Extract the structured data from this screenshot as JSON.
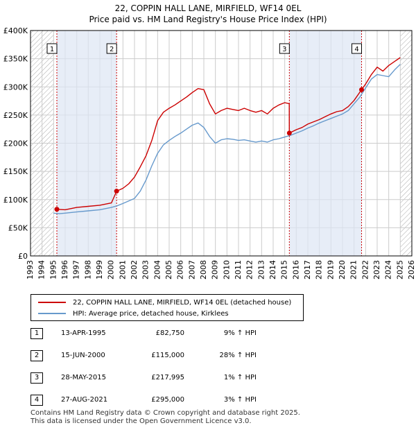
{
  "header": {
    "title": "22, COPPIN HALL LANE, MIRFIELD, WF14 0EL",
    "subtitle": "Price paid vs. HM Land Registry's House Price Index (HPI)"
  },
  "colors": {
    "price_line": "#cc0000",
    "hpi_line": "#6699cc",
    "shade": "#dde6f3",
    "hatch": "#aaaaaa",
    "grid": "#cccccc",
    "marker_line": "#cc0000"
  },
  "legend": {
    "price_label": "22, COPPIN HALL LANE, MIRFIELD, WF14 0EL (detached house)",
    "hpi_label": "HPI: Average price, detached house, Kirklees"
  },
  "sales": [
    {
      "num": "1",
      "date": "13-APR-1995",
      "price": "£82,750",
      "hpi": "9% ↑ HPI"
    },
    {
      "num": "2",
      "date": "15-JUN-2000",
      "price": "£115,000",
      "hpi": "28% ↑ HPI"
    },
    {
      "num": "3",
      "date": "28-MAY-2015",
      "price": "£217,995",
      "hpi": "1% ↑ HPI"
    },
    {
      "num": "4",
      "date": "27-AUG-2021",
      "price": "£295,000",
      "hpi": "3% ↑ HPI"
    }
  ],
  "footer": {
    "line1": "Contains HM Land Registry data © Crown copyright and database right 2025.",
    "line2": "This data is licensed under the Open Government Licence v3.0."
  },
  "chart_data": {
    "type": "line",
    "title": "22, COPPIN HALL LANE, MIRFIELD, WF14 0EL",
    "subtitle": "Price paid vs. HM Land Registry's House Price Index (HPI)",
    "xlabel": "",
    "ylabel": "",
    "xlim": [
      1993,
      2026
    ],
    "ylim": [
      0,
      400000
    ],
    "x_ticks": [
      1993,
      1994,
      1995,
      1996,
      1997,
      1998,
      1999,
      2000,
      2001,
      2002,
      2003,
      2004,
      2005,
      2006,
      2007,
      2008,
      2009,
      2010,
      2011,
      2012,
      2013,
      2014,
      2015,
      2016,
      2017,
      2018,
      2019,
      2020,
      2021,
      2022,
      2023,
      2024,
      2025,
      2026
    ],
    "y_ticks": [
      {
        "value": 0,
        "label": "£0"
      },
      {
        "value": 50000,
        "label": "£50K"
      },
      {
        "value": 100000,
        "label": "£100K"
      },
      {
        "value": 150000,
        "label": "£150K"
      },
      {
        "value": 200000,
        "label": "£200K"
      },
      {
        "value": 250000,
        "label": "£250K"
      },
      {
        "value": 300000,
        "label": "£300K"
      },
      {
        "value": 350000,
        "label": "£350K"
      },
      {
        "value": 400000,
        "label": "£400K"
      }
    ],
    "grid": true,
    "hatched_ranges": [
      [
        1993,
        1995.0
      ],
      [
        2025.0,
        2026
      ]
    ],
    "shaded_ranges": [
      [
        1995.28,
        2000.45
      ],
      [
        2015.4,
        2021.65
      ]
    ],
    "sales": [
      {
        "label": "1",
        "x": 1995.28,
        "y": 82750
      },
      {
        "label": "2",
        "x": 2000.45,
        "y": 115000
      },
      {
        "label": "3",
        "x": 2015.4,
        "y": 217995
      },
      {
        "label": "4",
        "x": 2021.65,
        "y": 295000
      }
    ],
    "series": [
      {
        "name": "22, COPPIN HALL LANE, MIRFIELD, WF14 0EL (detached house)",
        "color": "#cc0000",
        "x": [
          1995.28,
          1996,
          1997,
          1998,
          1999,
          2000,
          2000.45,
          2001,
          2001.5,
          2002,
          2002.5,
          2003,
          2003.5,
          2004,
          2004.5,
          2005,
          2005.5,
          2006,
          2006.5,
          2007,
          2007.5,
          2008,
          2008.5,
          2009,
          2009.5,
          2010,
          2010.5,
          2011,
          2011.5,
          2012,
          2012.5,
          2013,
          2013.5,
          2014,
          2014.5,
          2015,
          2015.39,
          2015.4,
          2016,
          2016.5,
          2017,
          2017.5,
          2018,
          2018.5,
          2019,
          2019.5,
          2020,
          2020.5,
          2021,
          2021.65,
          2022,
          2022.5,
          2023,
          2023.5,
          2024,
          2024.5,
          2025
        ],
        "values": [
          82750,
          82000,
          86000,
          88000,
          90000,
          94000,
          115000,
          120000,
          128000,
          140000,
          158000,
          178000,
          205000,
          240000,
          255000,
          262000,
          268000,
          275000,
          282000,
          290000,
          297000,
          295000,
          270000,
          252000,
          258000,
          262000,
          260000,
          258000,
          262000,
          258000,
          255000,
          258000,
          252000,
          262000,
          268000,
          272000,
          270000,
          217995,
          224000,
          228000,
          234000,
          238000,
          242000,
          247000,
          252000,
          256000,
          258000,
          265000,
          276000,
          295000,
          305000,
          322000,
          335000,
          328000,
          338000,
          345000,
          352000
        ]
      },
      {
        "name": "HPI: Average price, detached house, Kirklees",
        "color": "#6699cc",
        "x": [
          1995,
          1995.5,
          1996,
          1997,
          1998,
          1999,
          2000,
          2000.5,
          2001,
          2002,
          2002.5,
          2003,
          2003.5,
          2004,
          2004.5,
          2005,
          2005.5,
          2006,
          2006.5,
          2007,
          2007.5,
          2008,
          2008.5,
          2009,
          2009.5,
          2010,
          2010.5,
          2011,
          2011.5,
          2012,
          2012.5,
          2013,
          2013.5,
          2014,
          2014.5,
          2015,
          2015.5,
          2016,
          2016.5,
          2017,
          2017.5,
          2018,
          2018.5,
          2019,
          2019.5,
          2020,
          2020.5,
          2021,
          2021.5,
          2022,
          2022.5,
          2023,
          2023.5,
          2024,
          2024.5,
          2025
        ],
        "values": [
          76000,
          75000,
          76000,
          78000,
          80000,
          82000,
          86000,
          89000,
          93000,
          102000,
          115000,
          135000,
          160000,
          182000,
          197000,
          205000,
          212000,
          218000,
          225000,
          232000,
          236000,
          228000,
          212000,
          200000,
          206000,
          208000,
          207000,
          205000,
          206000,
          204000,
          202000,
          204000,
          202000,
          206000,
          208000,
          211000,
          214000,
          218000,
          222000,
          227000,
          231000,
          236000,
          240000,
          244000,
          248000,
          252000,
          258000,
          270000,
          282000,
          298000,
          314000,
          322000,
          320000,
          318000,
          330000,
          340000
        ]
      }
    ]
  }
}
